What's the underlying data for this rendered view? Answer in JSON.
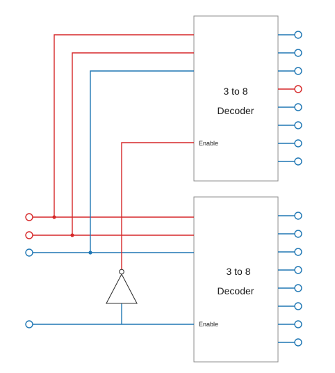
{
  "colors": {
    "active": "#d62728",
    "inactive": "#1f77b4",
    "box_border": "#8c8c8c",
    "gate": "#333333"
  },
  "decoders": [
    {
      "id": "top",
      "title_line1": "3 to 8",
      "title_line2": "Decoder",
      "enable_label": "Enable",
      "active_output_index": 3,
      "output_count": 8
    },
    {
      "id": "bottom",
      "title_line1": "3 to 8",
      "title_line2": "Decoder",
      "enable_label": "Enable",
      "active_output_index": -1,
      "output_count": 8
    }
  ],
  "inputs": [
    {
      "id": "A",
      "state": "active"
    },
    {
      "id": "B",
      "state": "active"
    },
    {
      "id": "C",
      "state": "inactive"
    },
    {
      "id": "EN",
      "state": "inactive"
    }
  ]
}
